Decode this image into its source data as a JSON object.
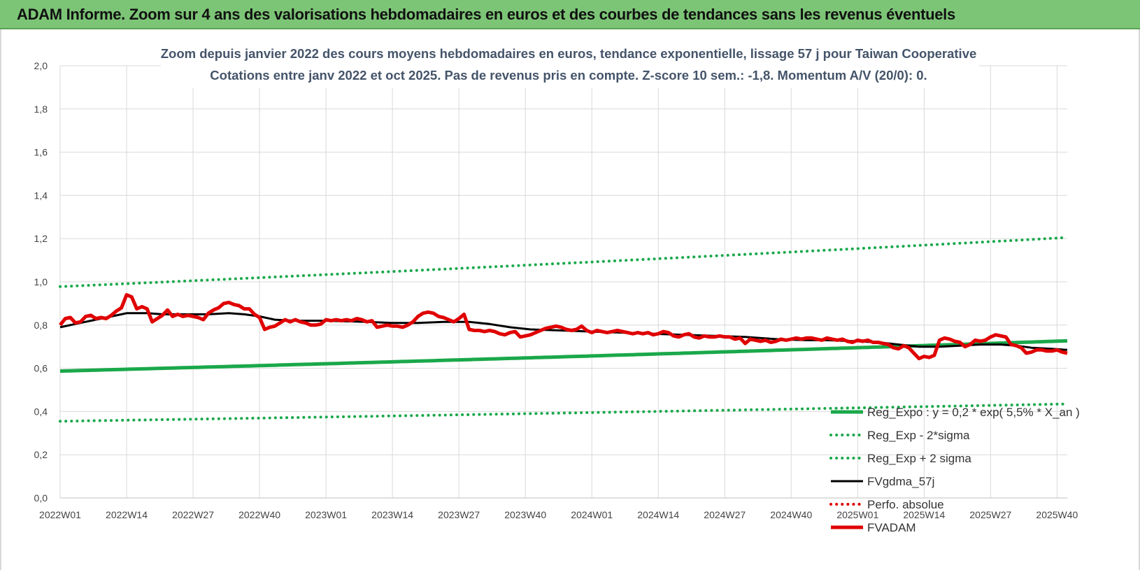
{
  "header": {
    "title": "ADAM Informe. Zoom sur 4 ans des valorisations hebdomadaires en euros et des courbes de tendances sans les revenus éventuels"
  },
  "chart_data": {
    "type": "line",
    "title_line1": "Zoom depuis janvier 2022 des cours moyens hebdomadaires en euros, tendance exponentielle, lissage 57 j pour Taiwan Cooperative",
    "title_line2": "Cotations entre janv 2022 et oct 2025. Pas de revenus pris en compte. Z-score 10 sem.: -1,8.  Momentum A/V (20/0): 0.",
    "ylim": [
      0,
      2
    ],
    "y_ticks": [
      "0,0",
      "0,2",
      "0,4",
      "0,6",
      "0,8",
      "1,0",
      "1,2",
      "1,4",
      "1,6",
      "1,8",
      "2,0"
    ],
    "y_tick_values": [
      0,
      0.2,
      0.4,
      0.6,
      0.8,
      1.0,
      1.2,
      1.4,
      1.6,
      1.8,
      2.0
    ],
    "x_count": 198,
    "x_ticks": [
      {
        "i": 0,
        "label": "2022W01"
      },
      {
        "i": 13,
        "label": "2022W14"
      },
      {
        "i": 26,
        "label": "2022W27"
      },
      {
        "i": 39,
        "label": "2022W40"
      },
      {
        "i": 52,
        "label": "2023W01"
      },
      {
        "i": 65,
        "label": "2023W14"
      },
      {
        "i": 78,
        "label": "2023W27"
      },
      {
        "i": 91,
        "label": "2023W40"
      },
      {
        "i": 104,
        "label": "2024W01"
      },
      {
        "i": 117,
        "label": "2024W14"
      },
      {
        "i": 130,
        "label": "2024W27"
      },
      {
        "i": 143,
        "label": "2024W40"
      },
      {
        "i": 156,
        "label": "2025W01"
      },
      {
        "i": 169,
        "label": "2025W14"
      },
      {
        "i": 182,
        "label": "2025W27"
      },
      {
        "i": 195,
        "label": "2025W40"
      }
    ],
    "legend": [
      {
        "name": "Reg_Expo : y = 0,2 * exp( 5,5% *  X_an )",
        "color": "#1aa84a",
        "style": "solid-thick"
      },
      {
        "name": "Reg_Exp - 2*sigma",
        "color": "#1aa84a",
        "style": "dotted"
      },
      {
        "name": "Reg_Exp + 2 sigma",
        "color": "#1aa84a",
        "style": "dotted"
      },
      {
        "name": "FVgdma_57j",
        "color": "#000000",
        "style": "solid"
      },
      {
        "name": "Perfo. absolue",
        "color": "#e00000",
        "style": "dotted"
      },
      {
        "name": "FVADAM",
        "color": "#e00000",
        "style": "solid-thick"
      }
    ],
    "series": [
      {
        "name": "Reg_Expo",
        "type": "exp",
        "start": 0.587,
        "end": 0.727
      },
      {
        "name": "Reg_Exp - 2*sigma",
        "type": "exp",
        "start": 0.355,
        "end": 0.435
      },
      {
        "name": "Reg_Exp + 2 sigma",
        "type": "exp",
        "start": 0.978,
        "end": 1.205
      },
      {
        "name": "FVgdma_57j",
        "type": "points",
        "points": [
          [
            0,
            0.79
          ],
          [
            4,
            0.81
          ],
          [
            8,
            0.83
          ],
          [
            12,
            0.85
          ],
          [
            13,
            0.855
          ],
          [
            17,
            0.855
          ],
          [
            20,
            0.85
          ],
          [
            25,
            0.85
          ],
          [
            29,
            0.85
          ],
          [
            33,
            0.855
          ],
          [
            36,
            0.85
          ],
          [
            39,
            0.84
          ],
          [
            42,
            0.825
          ],
          [
            46,
            0.82
          ],
          [
            52,
            0.82
          ],
          [
            60,
            0.815
          ],
          [
            65,
            0.81
          ],
          [
            70,
            0.81
          ],
          [
            75,
            0.815
          ],
          [
            80,
            0.815
          ],
          [
            84,
            0.805
          ],
          [
            88,
            0.79
          ],
          [
            92,
            0.78
          ],
          [
            98,
            0.775
          ],
          [
            104,
            0.77
          ],
          [
            110,
            0.765
          ],
          [
            116,
            0.76
          ],
          [
            122,
            0.755
          ],
          [
            128,
            0.75
          ],
          [
            134,
            0.745
          ],
          [
            140,
            0.735
          ],
          [
            146,
            0.73
          ],
          [
            150,
            0.73
          ],
          [
            156,
            0.725
          ],
          [
            160,
            0.72
          ],
          [
            164,
            0.71
          ],
          [
            168,
            0.7
          ],
          [
            172,
            0.7
          ],
          [
            176,
            0.705
          ],
          [
            180,
            0.71
          ],
          [
            184,
            0.71
          ],
          [
            187,
            0.705
          ],
          [
            190,
            0.695
          ],
          [
            194,
            0.69
          ],
          [
            197,
            0.685
          ]
        ]
      },
      {
        "name": "FVADAM",
        "type": "points",
        "points": [
          [
            0,
            0.8
          ],
          [
            1,
            0.83
          ],
          [
            2,
            0.835
          ],
          [
            3,
            0.81
          ],
          [
            4,
            0.815
          ],
          [
            5,
            0.84
          ],
          [
            6,
            0.845
          ],
          [
            7,
            0.83
          ],
          [
            8,
            0.835
          ],
          [
            9,
            0.83
          ],
          [
            10,
            0.845
          ],
          [
            11,
            0.865
          ],
          [
            12,
            0.88
          ],
          [
            13,
            0.94
          ],
          [
            14,
            0.93
          ],
          [
            15,
            0.875
          ],
          [
            16,
            0.885
          ],
          [
            17,
            0.875
          ],
          [
            18,
            0.815
          ],
          [
            19,
            0.83
          ],
          [
            20,
            0.845
          ],
          [
            21,
            0.87
          ],
          [
            22,
            0.84
          ],
          [
            23,
            0.85
          ],
          [
            24,
            0.84
          ],
          [
            25,
            0.845
          ],
          [
            26,
            0.84
          ],
          [
            27,
            0.835
          ],
          [
            28,
            0.825
          ],
          [
            29,
            0.855
          ],
          [
            30,
            0.87
          ],
          [
            31,
            0.88
          ],
          [
            32,
            0.9
          ],
          [
            33,
            0.905
          ],
          [
            34,
            0.895
          ],
          [
            35,
            0.89
          ],
          [
            36,
            0.875
          ],
          [
            37,
            0.875
          ],
          [
            38,
            0.85
          ],
          [
            39,
            0.835
          ],
          [
            40,
            0.78
          ],
          [
            41,
            0.79
          ],
          [
            42,
            0.795
          ],
          [
            43,
            0.81
          ],
          [
            44,
            0.825
          ],
          [
            45,
            0.815
          ],
          [
            46,
            0.825
          ],
          [
            47,
            0.815
          ],
          [
            48,
            0.81
          ],
          [
            49,
            0.8
          ],
          [
            50,
            0.8
          ],
          [
            51,
            0.805
          ],
          [
            52,
            0.825
          ],
          [
            53,
            0.82
          ],
          [
            54,
            0.825
          ],
          [
            55,
            0.82
          ],
          [
            56,
            0.825
          ],
          [
            57,
            0.82
          ],
          [
            58,
            0.83
          ],
          [
            59,
            0.825
          ],
          [
            60,
            0.815
          ],
          [
            61,
            0.82
          ],
          [
            62,
            0.79
          ],
          [
            63,
            0.795
          ],
          [
            64,
            0.8
          ],
          [
            65,
            0.795
          ],
          [
            66,
            0.795
          ],
          [
            67,
            0.79
          ],
          [
            68,
            0.8
          ],
          [
            69,
            0.815
          ],
          [
            70,
            0.84
          ],
          [
            71,
            0.855
          ],
          [
            72,
            0.86
          ],
          [
            73,
            0.855
          ],
          [
            74,
            0.84
          ],
          [
            75,
            0.835
          ],
          [
            76,
            0.825
          ],
          [
            77,
            0.815
          ],
          [
            78,
            0.83
          ],
          [
            79,
            0.85
          ],
          [
            80,
            0.78
          ],
          [
            81,
            0.775
          ],
          [
            82,
            0.775
          ],
          [
            83,
            0.77
          ],
          [
            84,
            0.775
          ],
          [
            85,
            0.77
          ],
          [
            86,
            0.76
          ],
          [
            87,
            0.755
          ],
          [
            88,
            0.765
          ],
          [
            89,
            0.77
          ],
          [
            90,
            0.745
          ],
          [
            91,
            0.75
          ],
          [
            92,
            0.755
          ],
          [
            93,
            0.765
          ],
          [
            94,
            0.775
          ],
          [
            95,
            0.785
          ],
          [
            96,
            0.79
          ],
          [
            97,
            0.795
          ],
          [
            98,
            0.79
          ],
          [
            99,
            0.78
          ],
          [
            100,
            0.775
          ],
          [
            101,
            0.78
          ],
          [
            102,
            0.795
          ],
          [
            103,
            0.775
          ],
          [
            104,
            0.765
          ],
          [
            105,
            0.775
          ],
          [
            106,
            0.77
          ],
          [
            107,
            0.765
          ],
          [
            108,
            0.77
          ],
          [
            109,
            0.775
          ],
          [
            110,
            0.77
          ],
          [
            111,
            0.765
          ],
          [
            112,
            0.76
          ],
          [
            113,
            0.765
          ],
          [
            114,
            0.76
          ],
          [
            115,
            0.765
          ],
          [
            116,
            0.755
          ],
          [
            117,
            0.76
          ],
          [
            118,
            0.77
          ],
          [
            119,
            0.765
          ],
          [
            120,
            0.75
          ],
          [
            121,
            0.745
          ],
          [
            122,
            0.755
          ],
          [
            123,
            0.76
          ],
          [
            124,
            0.745
          ],
          [
            125,
            0.74
          ],
          [
            126,
            0.75
          ],
          [
            127,
            0.745
          ],
          [
            128,
            0.745
          ],
          [
            129,
            0.75
          ],
          [
            130,
            0.745
          ],
          [
            131,
            0.745
          ],
          [
            132,
            0.735
          ],
          [
            133,
            0.74
          ],
          [
            134,
            0.715
          ],
          [
            135,
            0.735
          ],
          [
            136,
            0.73
          ],
          [
            137,
            0.725
          ],
          [
            138,
            0.73
          ],
          [
            139,
            0.72
          ],
          [
            140,
            0.725
          ],
          [
            141,
            0.735
          ],
          [
            142,
            0.73
          ],
          [
            143,
            0.735
          ],
          [
            144,
            0.74
          ],
          [
            145,
            0.735
          ],
          [
            146,
            0.74
          ],
          [
            147,
            0.74
          ],
          [
            148,
            0.735
          ],
          [
            149,
            0.73
          ],
          [
            150,
            0.74
          ],
          [
            151,
            0.735
          ],
          [
            152,
            0.73
          ],
          [
            153,
            0.735
          ],
          [
            154,
            0.725
          ],
          [
            155,
            0.72
          ],
          [
            156,
            0.73
          ],
          [
            157,
            0.725
          ],
          [
            158,
            0.73
          ],
          [
            159,
            0.72
          ],
          [
            160,
            0.72
          ],
          [
            161,
            0.715
          ],
          [
            162,
            0.71
          ],
          [
            163,
            0.695
          ],
          [
            164,
            0.69
          ],
          [
            165,
            0.705
          ],
          [
            166,
            0.695
          ],
          [
            167,
            0.67
          ],
          [
            168,
            0.645
          ],
          [
            169,
            0.655
          ],
          [
            170,
            0.65
          ],
          [
            171,
            0.66
          ],
          [
            172,
            0.73
          ],
          [
            173,
            0.74
          ],
          [
            174,
            0.735
          ],
          [
            175,
            0.725
          ],
          [
            176,
            0.72
          ],
          [
            177,
            0.7
          ],
          [
            178,
            0.71
          ],
          [
            179,
            0.73
          ],
          [
            180,
            0.725
          ],
          [
            181,
            0.73
          ],
          [
            182,
            0.745
          ],
          [
            183,
            0.755
          ],
          [
            184,
            0.75
          ],
          [
            185,
            0.745
          ],
          [
            186,
            0.71
          ],
          [
            187,
            0.705
          ],
          [
            188,
            0.695
          ],
          [
            189,
            0.67
          ],
          [
            190,
            0.675
          ],
          [
            191,
            0.685
          ],
          [
            192,
            0.685
          ],
          [
            193,
            0.68
          ],
          [
            194,
            0.68
          ],
          [
            195,
            0.685
          ],
          [
            196,
            0.675
          ],
          [
            197,
            0.67
          ]
        ]
      }
    ]
  }
}
